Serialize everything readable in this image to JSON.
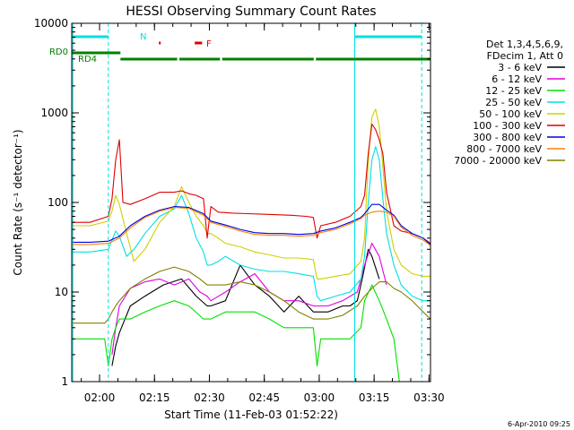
{
  "chart_data": {
    "type": "line",
    "title": "HESSI Observing Summary Count Rates",
    "xlabel": "Start Time (11-Feb-03 01:52:22)",
    "ylabel": "Count Rate (s⁻¹ detector⁻¹)",
    "footer": "6-Apr-2010 09:25",
    "x_unit": "minutes after 01:52:22",
    "xlim": [
      0,
      98
    ],
    "ylim": [
      1,
      10000
    ],
    "y_scale": "log",
    "grid": false,
    "legend_position": "right",
    "x_ticks": [
      {
        "label": "02:00",
        "x": 7.6
      },
      {
        "label": "02:15",
        "x": 22.6
      },
      {
        "label": "02:30",
        "x": 37.6
      },
      {
        "label": "02:45",
        "x": 52.6
      },
      {
        "label": "03:00",
        "x": 67.6
      },
      {
        "label": "03:15",
        "x": 82.6
      },
      {
        "label": "03:30",
        "x": 97.6
      }
    ],
    "y_ticks": [
      {
        "label": "1",
        "y": 1
      },
      {
        "label": "10",
        "y": 10
      },
      {
        "label": "100",
        "y": 100
      },
      {
        "label": "1000",
        "y": 1000
      },
      {
        "label": "10000",
        "y": 10000
      }
    ],
    "legend_header": [
      "Det 1,3,4,5,6,9,",
      "FDecim 1, Att 0"
    ],
    "series": [
      {
        "name": "3 - 6 keV",
        "color": "#000000",
        "x": [
          0,
          7,
          10,
          11,
          12,
          13,
          16,
          20,
          25,
          30,
          34,
          37,
          38,
          42,
          46,
          50,
          54,
          58,
          62,
          66,
          67,
          70,
          74,
          76,
          78,
          79.5,
          81,
          82,
          84,
          88,
          92,
          96,
          98
        ],
        "y": [
          null,
          null,
          null,
          1.5,
          2.5,
          3.5,
          7,
          9,
          12,
          14,
          9,
          7,
          7,
          8,
          20,
          12,
          9,
          6,
          9,
          6,
          6,
          6,
          7,
          7,
          8,
          15,
          30,
          25,
          14,
          null,
          null,
          null,
          null
        ]
      },
      {
        "name": "6 - 12 keV",
        "color": "#e000e0",
        "x": [
          0,
          9,
          10,
          11,
          12,
          13,
          16,
          20,
          24,
          28,
          32,
          35,
          37,
          38,
          42,
          46,
          50,
          54,
          58,
          62,
          66,
          67,
          70,
          74,
          78,
          80,
          82,
          84,
          86,
          88,
          90
        ],
        "y": [
          null,
          null,
          null,
          2,
          4,
          7,
          11,
          13,
          14,
          12,
          14,
          10,
          9,
          8,
          10,
          13,
          16,
          10,
          8,
          8,
          7,
          7,
          7,
          8,
          10,
          20,
          35,
          25,
          12,
          null,
          null
        ]
      },
      {
        "name": "12 - 25 keV",
        "color": "#00e000",
        "x": [
          0,
          3,
          6,
          9,
          10,
          11,
          12,
          13,
          16,
          20,
          24,
          28,
          32,
          36,
          38,
          42,
          46,
          50,
          54,
          58,
          62,
          66,
          67,
          68,
          72,
          76,
          79,
          80,
          82,
          84,
          86,
          88,
          89.5,
          91
        ],
        "y": [
          3,
          3,
          3,
          3,
          1.5,
          3,
          4,
          5,
          5,
          6,
          7,
          8,
          7,
          5,
          5,
          6,
          6,
          6,
          5,
          4,
          4,
          4,
          1.5,
          3,
          3,
          3,
          4,
          8,
          12,
          8,
          5,
          3,
          1,
          null
        ]
      },
      {
        "name": "25 - 50 keV",
        "color": "#00e0e0",
        "x": [
          0,
          5,
          10,
          11,
          12,
          13,
          15,
          17,
          20,
          24,
          28,
          30,
          32,
          34,
          36,
          37,
          38,
          40,
          42,
          46,
          50,
          54,
          58,
          62,
          66,
          67,
          68,
          72,
          76,
          79,
          80,
          81,
          82,
          83,
          84,
          85,
          86,
          88,
          90,
          93,
          96,
          98
        ],
        "y": [
          28,
          28,
          30,
          38,
          48,
          42,
          25,
          30,
          45,
          70,
          85,
          120,
          75,
          40,
          28,
          20,
          20,
          22,
          25,
          20,
          18,
          17,
          17,
          16,
          15,
          9,
          8,
          9,
          10,
          14,
          25,
          100,
          300,
          420,
          300,
          110,
          45,
          20,
          12,
          9,
          8,
          8
        ]
      },
      {
        "name": "50 - 100 keV",
        "color": "#d0d000",
        "x": [
          0,
          5,
          10,
          11,
          12,
          13,
          15,
          17,
          20,
          24,
          28,
          30,
          32,
          34,
          36,
          37,
          38,
          40,
          42,
          46,
          50,
          54,
          58,
          62,
          66,
          67,
          68,
          72,
          76,
          79,
          80,
          81,
          82,
          83,
          84,
          85,
          86,
          88,
          90,
          93,
          96,
          98
        ],
        "y": [
          55,
          55,
          62,
          80,
          120,
          95,
          45,
          22,
          30,
          60,
          90,
          150,
          100,
          70,
          55,
          45,
          45,
          40,
          35,
          32,
          28,
          26,
          24,
          24,
          23,
          14,
          14,
          15,
          16,
          22,
          40,
          300,
          900,
          1100,
          700,
          250,
          80,
          30,
          20,
          16,
          15,
          15
        ]
      },
      {
        "name": "100 - 300 keV",
        "color": "#e00000",
        "x": [
          0,
          5,
          10,
          11,
          12,
          13,
          14,
          16,
          20,
          24,
          28,
          30,
          32,
          34,
          36,
          37,
          38,
          40,
          44,
          48,
          52,
          56,
          60,
          64,
          66,
          67,
          68,
          72,
          76,
          79,
          80,
          81,
          82,
          83,
          84,
          85,
          86,
          88,
          90,
          93,
          96,
          98
        ],
        "y": [
          60,
          60,
          70,
          110,
          300,
          500,
          100,
          95,
          110,
          130,
          130,
          135,
          125,
          120,
          110,
          40,
          90,
          78,
          76,
          75,
          74,
          73,
          72,
          70,
          68,
          40,
          55,
          60,
          70,
          90,
          120,
          350,
          750,
          650,
          500,
          350,
          130,
          55,
          48,
          45,
          40,
          35
        ]
      },
      {
        "name": "300 - 800 keV",
        "color": "#0000e0",
        "x": [
          0,
          5,
          10,
          13,
          16,
          20,
          24,
          28,
          32,
          36,
          38,
          42,
          46,
          50,
          54,
          58,
          62,
          66,
          68,
          72,
          76,
          79,
          80,
          82,
          84,
          86,
          88,
          90,
          93,
          96,
          98
        ],
        "y": [
          36,
          36,
          37,
          42,
          55,
          70,
          82,
          90,
          88,
          75,
          62,
          56,
          50,
          46,
          45,
          45,
          44,
          45,
          48,
          52,
          60,
          68,
          75,
          95,
          95,
          82,
          72,
          55,
          45,
          40,
          34
        ]
      },
      {
        "name": "800 - 7000 keV",
        "color": "#ff8000",
        "x": [
          0,
          5,
          10,
          13,
          16,
          20,
          24,
          28,
          32,
          36,
          38,
          42,
          46,
          50,
          54,
          58,
          62,
          66,
          68,
          72,
          76,
          79,
          80,
          82,
          84,
          86,
          88,
          90,
          93,
          96,
          98
        ],
        "y": [
          34,
          34,
          35,
          40,
          52,
          68,
          80,
          88,
          86,
          72,
          60,
          54,
          48,
          44,
          43,
          43,
          42,
          43,
          46,
          50,
          58,
          66,
          72,
          78,
          80,
          78,
          70,
          53,
          43,
          38,
          33
        ]
      },
      {
        "name": "7000 - 20000 keV",
        "color": "#808000",
        "x": [
          0,
          9,
          10,
          11,
          12,
          13,
          16,
          20,
          24,
          28,
          32,
          35,
          37,
          38,
          42,
          46,
          50,
          54,
          58,
          62,
          66,
          67,
          70,
          74,
          78,
          80,
          82,
          84,
          86,
          88,
          90,
          93,
          96,
          98
        ],
        "y": [
          4.5,
          4.5,
          5,
          6,
          7,
          8,
          11,
          14,
          17,
          19,
          17,
          14,
          12,
          12,
          12,
          13,
          12,
          10,
          8,
          6,
          5,
          5,
          5,
          5.5,
          7,
          9,
          11,
          13,
          13,
          11,
          10,
          8,
          6,
          5
        ]
      }
    ],
    "annotations": {
      "top_labels": [
        "N",
        "RD0",
        "RD4",
        "F"
      ],
      "vertical_lines_dashed_x": [
        10.0,
        95.6
      ],
      "vertical_lines_solid_x": [
        0.3,
        77.3
      ],
      "night_bars_x": [
        [
          0,
          10.0
        ],
        [
          77.3,
          95.6
        ]
      ],
      "flare_marks_x": [
        [
          23.8,
          24.3
        ],
        [
          33.6,
          35.6
        ]
      ],
      "segments_rd0_x": [
        [
          0,
          13.3
        ]
      ],
      "segments_rd4_x": [
        [
          13.3,
          28.8
        ],
        [
          29.4,
          40.5
        ],
        [
          41.1,
          66.1
        ],
        [
          66.7,
          98
        ]
      ]
    }
  }
}
